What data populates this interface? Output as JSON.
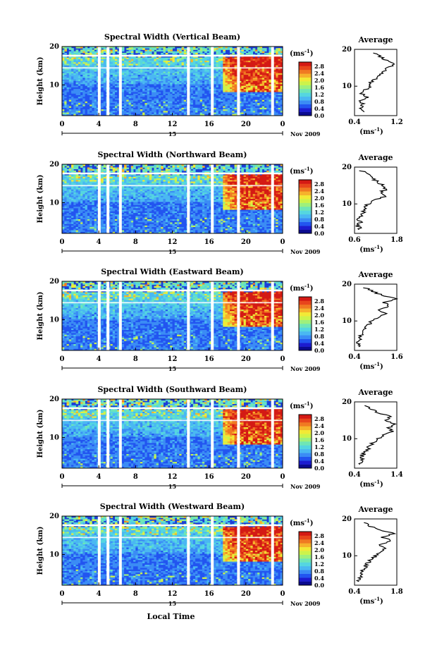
{
  "figure": {
    "date_label": "Nov 2009",
    "xlabel": "Local Time",
    "day_label": "15",
    "colorbar_unit": "(ms",
    "colorbar_unit_exp": "-1",
    "colorbar_ticks": [
      "2.8",
      "2.4",
      "2.0",
      "1.6",
      "1.2",
      "0.8",
      "0.4",
      "0.0"
    ],
    "average_title": "Average",
    "average_unit": "(ms",
    "average_unit_exp": "-1"
  },
  "chart_data": [
    {
      "type": "heatmap",
      "title": "Spectral Width (Vertical Beam)",
      "ylabel": "Height (km)",
      "xlim": [
        0,
        24
      ],
      "x_ticks": [
        "0",
        "4",
        "8",
        "12",
        "16",
        "20",
        "0"
      ],
      "ylim": [
        2,
        20
      ],
      "y_ticks": [
        "20",
        "10"
      ],
      "colorbar_range": [
        0.0,
        2.8
      ],
      "average_profile": {
        "xlim": [
          0.4,
          1.2
        ],
        "x_ticks": [
          "0.4",
          "1.2"
        ],
        "y_ticks": [
          "20",
          "10"
        ],
        "height": [
          3,
          4,
          5,
          6,
          7,
          8,
          9,
          10,
          11,
          12,
          13,
          14,
          15,
          16,
          17,
          18,
          19
        ],
        "width": [
          0.55,
          0.5,
          0.57,
          0.52,
          0.62,
          0.55,
          0.6,
          0.72,
          0.68,
          0.8,
          0.9,
          0.95,
          1.05,
          1.12,
          1.0,
          0.9,
          0.75
        ]
      }
    },
    {
      "type": "heatmap",
      "title": "Spectral Width (Northward Beam)",
      "ylabel": "Height (km)",
      "xlim": [
        0,
        24
      ],
      "x_ticks": [
        "0",
        "4",
        "8",
        "12",
        "16",
        "20",
        "0"
      ],
      "ylim": [
        2,
        20
      ],
      "y_ticks": [
        "20",
        "10"
      ],
      "colorbar_range": [
        0.0,
        2.8
      ],
      "average_profile": {
        "xlim": [
          0.6,
          1.8
        ],
        "x_ticks": [
          "0.6",
          "1.8"
        ],
        "y_ticks": [
          "20",
          "10"
        ],
        "height": [
          3,
          4,
          5,
          6,
          7,
          8,
          9,
          10,
          11,
          12,
          13,
          14,
          15,
          16,
          17,
          18,
          19
        ],
        "width": [
          0.75,
          0.7,
          0.78,
          0.72,
          0.8,
          0.85,
          0.9,
          1.0,
          1.2,
          1.45,
          1.3,
          1.5,
          1.4,
          1.25,
          1.1,
          0.95,
          0.8
        ]
      }
    },
    {
      "type": "heatmap",
      "title": "Spectral Width (Eastward Beam)",
      "ylabel": "Height (km)",
      "xlim": [
        0,
        24
      ],
      "x_ticks": [
        "0",
        "4",
        "8",
        "12",
        "16",
        "20",
        "0"
      ],
      "ylim": [
        2,
        20
      ],
      "y_ticks": [
        "20",
        "10"
      ],
      "colorbar_range": [
        0.0,
        2.8
      ],
      "average_profile": {
        "xlim": [
          0.4,
          1.6
        ],
        "x_ticks": [
          "0.4",
          "1.6"
        ],
        "y_ticks": [
          "20",
          "10"
        ],
        "height": [
          3,
          4,
          5,
          6,
          7,
          8,
          9,
          10,
          11,
          12,
          13,
          14,
          15,
          16,
          17,
          18,
          19
        ],
        "width": [
          0.55,
          0.5,
          0.6,
          0.55,
          0.65,
          0.7,
          0.8,
          0.9,
          1.05,
          1.3,
          1.1,
          1.4,
          1.25,
          1.55,
          1.2,
          0.9,
          0.7
        ]
      }
    },
    {
      "type": "heatmap",
      "title": "Spectral Width (Southward Beam)",
      "ylabel": "Height (km)",
      "xlim": [
        0,
        24
      ],
      "x_ticks": [
        "0",
        "4",
        "8",
        "12",
        "16",
        "20",
        "0"
      ],
      "ylim": [
        2,
        20
      ],
      "y_ticks": [
        "20",
        "10"
      ],
      "colorbar_range": [
        0.0,
        2.8
      ],
      "average_profile": {
        "xlim": [
          0.4,
          1.4
        ],
        "x_ticks": [
          "0.4",
          "1.4"
        ],
        "y_ticks": [
          "20",
          "10"
        ],
        "height": [
          3,
          4,
          5,
          6,
          7,
          8,
          9,
          10,
          11,
          12,
          13,
          14,
          15,
          16,
          17,
          18,
          19
        ],
        "width": [
          0.55,
          0.6,
          0.55,
          0.62,
          0.7,
          0.75,
          0.85,
          0.95,
          1.1,
          1.3,
          1.2,
          1.35,
          1.1,
          1.25,
          0.95,
          0.8,
          0.65
        ]
      }
    },
    {
      "type": "heatmap",
      "title": "Spectral Width (Westward Beam)",
      "ylabel": "Height (km)",
      "xlim": [
        0,
        24
      ],
      "x_ticks": [
        "0",
        "4",
        "8",
        "12",
        "16",
        "20",
        "0"
      ],
      "ylim": [
        2,
        20
      ],
      "y_ticks": [
        "20",
        "10"
      ],
      "colorbar_range": [
        0.0,
        2.8
      ],
      "average_profile": {
        "xlim": [
          0.4,
          1.8
        ],
        "x_ticks": [
          "0.4",
          "1.8"
        ],
        "y_ticks": [
          "20",
          "10"
        ],
        "height": [
          3,
          4,
          5,
          6,
          7,
          8,
          9,
          10,
          11,
          12,
          13,
          14,
          15,
          16,
          17,
          18,
          19
        ],
        "width": [
          0.55,
          0.6,
          0.58,
          0.65,
          0.75,
          0.85,
          0.95,
          1.1,
          1.3,
          1.4,
          1.25,
          1.6,
          1.35,
          1.7,
          1.3,
          0.95,
          0.75
        ]
      }
    }
  ]
}
